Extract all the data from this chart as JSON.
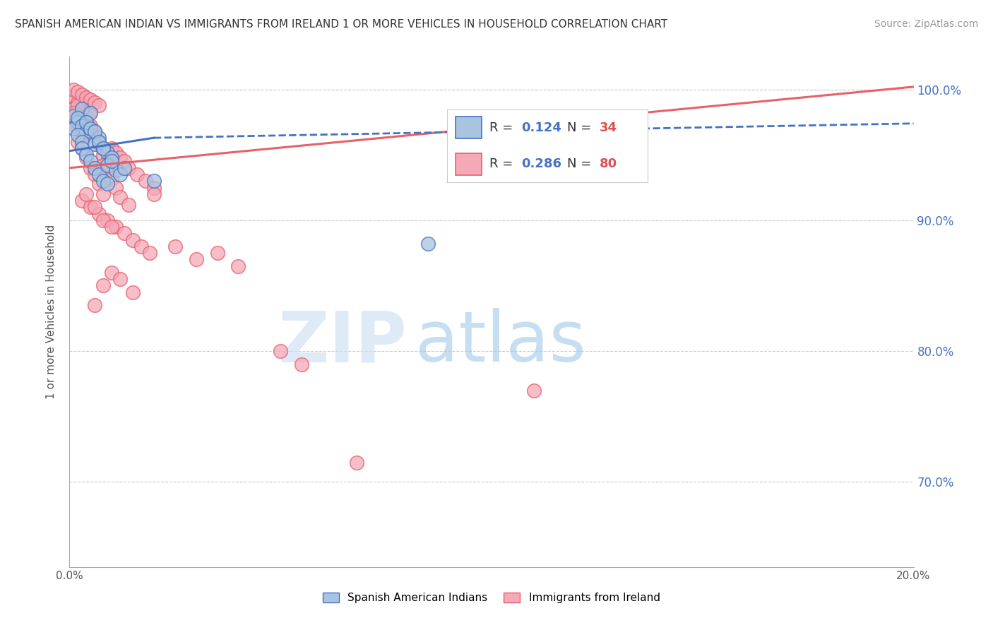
{
  "title": "SPANISH AMERICAN INDIAN VS IMMIGRANTS FROM IRELAND 1 OR MORE VEHICLES IN HOUSEHOLD CORRELATION CHART",
  "source": "Source: ZipAtlas.com",
  "ylabel": "1 or more Vehicles in Household",
  "xlim": [
    0.0,
    0.2
  ],
  "ylim": [
    0.635,
    1.025
  ],
  "ytick_positions": [
    0.7,
    0.8,
    0.9,
    1.0
  ],
  "ytick_labels": [
    "70.0%",
    "80.0%",
    "90.0%",
    "100.0%"
  ],
  "blue_scatter_color": "#a8c4e0",
  "blue_edge_color": "#4472c4",
  "pink_scatter_color": "#f4a8b8",
  "pink_edge_color": "#e8606a",
  "blue_line_color": "#4472c4",
  "pink_line_color": "#e8606a",
  "background_color": "#ffffff",
  "grid_color": "#cccccc",
  "blue_line_solid": {
    "x": [
      0.0,
      0.02
    ],
    "y": [
      0.953,
      0.963
    ]
  },
  "blue_line_dash": {
    "x": [
      0.02,
      0.2
    ],
    "y": [
      0.963,
      0.974
    ]
  },
  "pink_line": {
    "x": [
      0.0,
      0.2
    ],
    "y": [
      0.94,
      1.002
    ]
  },
  "blue_scatter_x": [
    0.001,
    0.002,
    0.001,
    0.003,
    0.002,
    0.003,
    0.004,
    0.002,
    0.005,
    0.003,
    0.004,
    0.006,
    0.003,
    0.005,
    0.007,
    0.004,
    0.006,
    0.008,
    0.005,
    0.007,
    0.009,
    0.006,
    0.008,
    0.01,
    0.007,
    0.009,
    0.011,
    0.008,
    0.01,
    0.012,
    0.009,
    0.013,
    0.085,
    0.02
  ],
  "blue_scatter_y": [
    0.98,
    0.975,
    0.97,
    0.985,
    0.978,
    0.972,
    0.968,
    0.965,
    0.982,
    0.96,
    0.975,
    0.958,
    0.955,
    0.97,
    0.963,
    0.95,
    0.968,
    0.955,
    0.945,
    0.96,
    0.952,
    0.94,
    0.955,
    0.948,
    0.935,
    0.942,
    0.938,
    0.93,
    0.945,
    0.935,
    0.928,
    0.94,
    0.882,
    0.93
  ],
  "pink_scatter_x": [
    0.001,
    0.002,
    0.001,
    0.003,
    0.002,
    0.004,
    0.001,
    0.003,
    0.002,
    0.005,
    0.003,
    0.006,
    0.004,
    0.002,
    0.007,
    0.005,
    0.003,
    0.008,
    0.006,
    0.004,
    0.009,
    0.007,
    0.005,
    0.01,
    0.008,
    0.006,
    0.011,
    0.009,
    0.007,
    0.012,
    0.01,
    0.008,
    0.013,
    0.011,
    0.014,
    0.012,
    0.016,
    0.014,
    0.018,
    0.02,
    0.003,
    0.005,
    0.007,
    0.009,
    0.011,
    0.013,
    0.015,
    0.017,
    0.019,
    0.004,
    0.006,
    0.008,
    0.01,
    0.001,
    0.002,
    0.003,
    0.004,
    0.005,
    0.006,
    0.007,
    0.002,
    0.003,
    0.004,
    0.005,
    0.001,
    0.002,
    0.05,
    0.055,
    0.01,
    0.012,
    0.02,
    0.03,
    0.025,
    0.035,
    0.04,
    0.015,
    0.008,
    0.006,
    0.068,
    0.11
  ],
  "pink_scatter_y": [
    0.995,
    0.99,
    0.985,
    0.992,
    0.988,
    0.98,
    0.978,
    0.975,
    0.97,
    0.983,
    0.968,
    0.965,
    0.975,
    0.96,
    0.958,
    0.972,
    0.955,
    0.95,
    0.968,
    0.948,
    0.945,
    0.96,
    0.94,
    0.955,
    0.942,
    0.935,
    0.952,
    0.938,
    0.928,
    0.948,
    0.932,
    0.92,
    0.945,
    0.925,
    0.94,
    0.918,
    0.935,
    0.912,
    0.93,
    0.925,
    0.915,
    0.91,
    0.905,
    0.9,
    0.895,
    0.89,
    0.885,
    0.88,
    0.875,
    0.92,
    0.91,
    0.9,
    0.895,
    1.0,
    0.998,
    0.996,
    0.994,
    0.992,
    0.99,
    0.988,
    0.975,
    0.972,
    0.968,
    0.965,
    0.982,
    0.978,
    0.8,
    0.79,
    0.86,
    0.855,
    0.92,
    0.87,
    0.88,
    0.875,
    0.865,
    0.845,
    0.85,
    0.835,
    0.715,
    0.77
  ]
}
